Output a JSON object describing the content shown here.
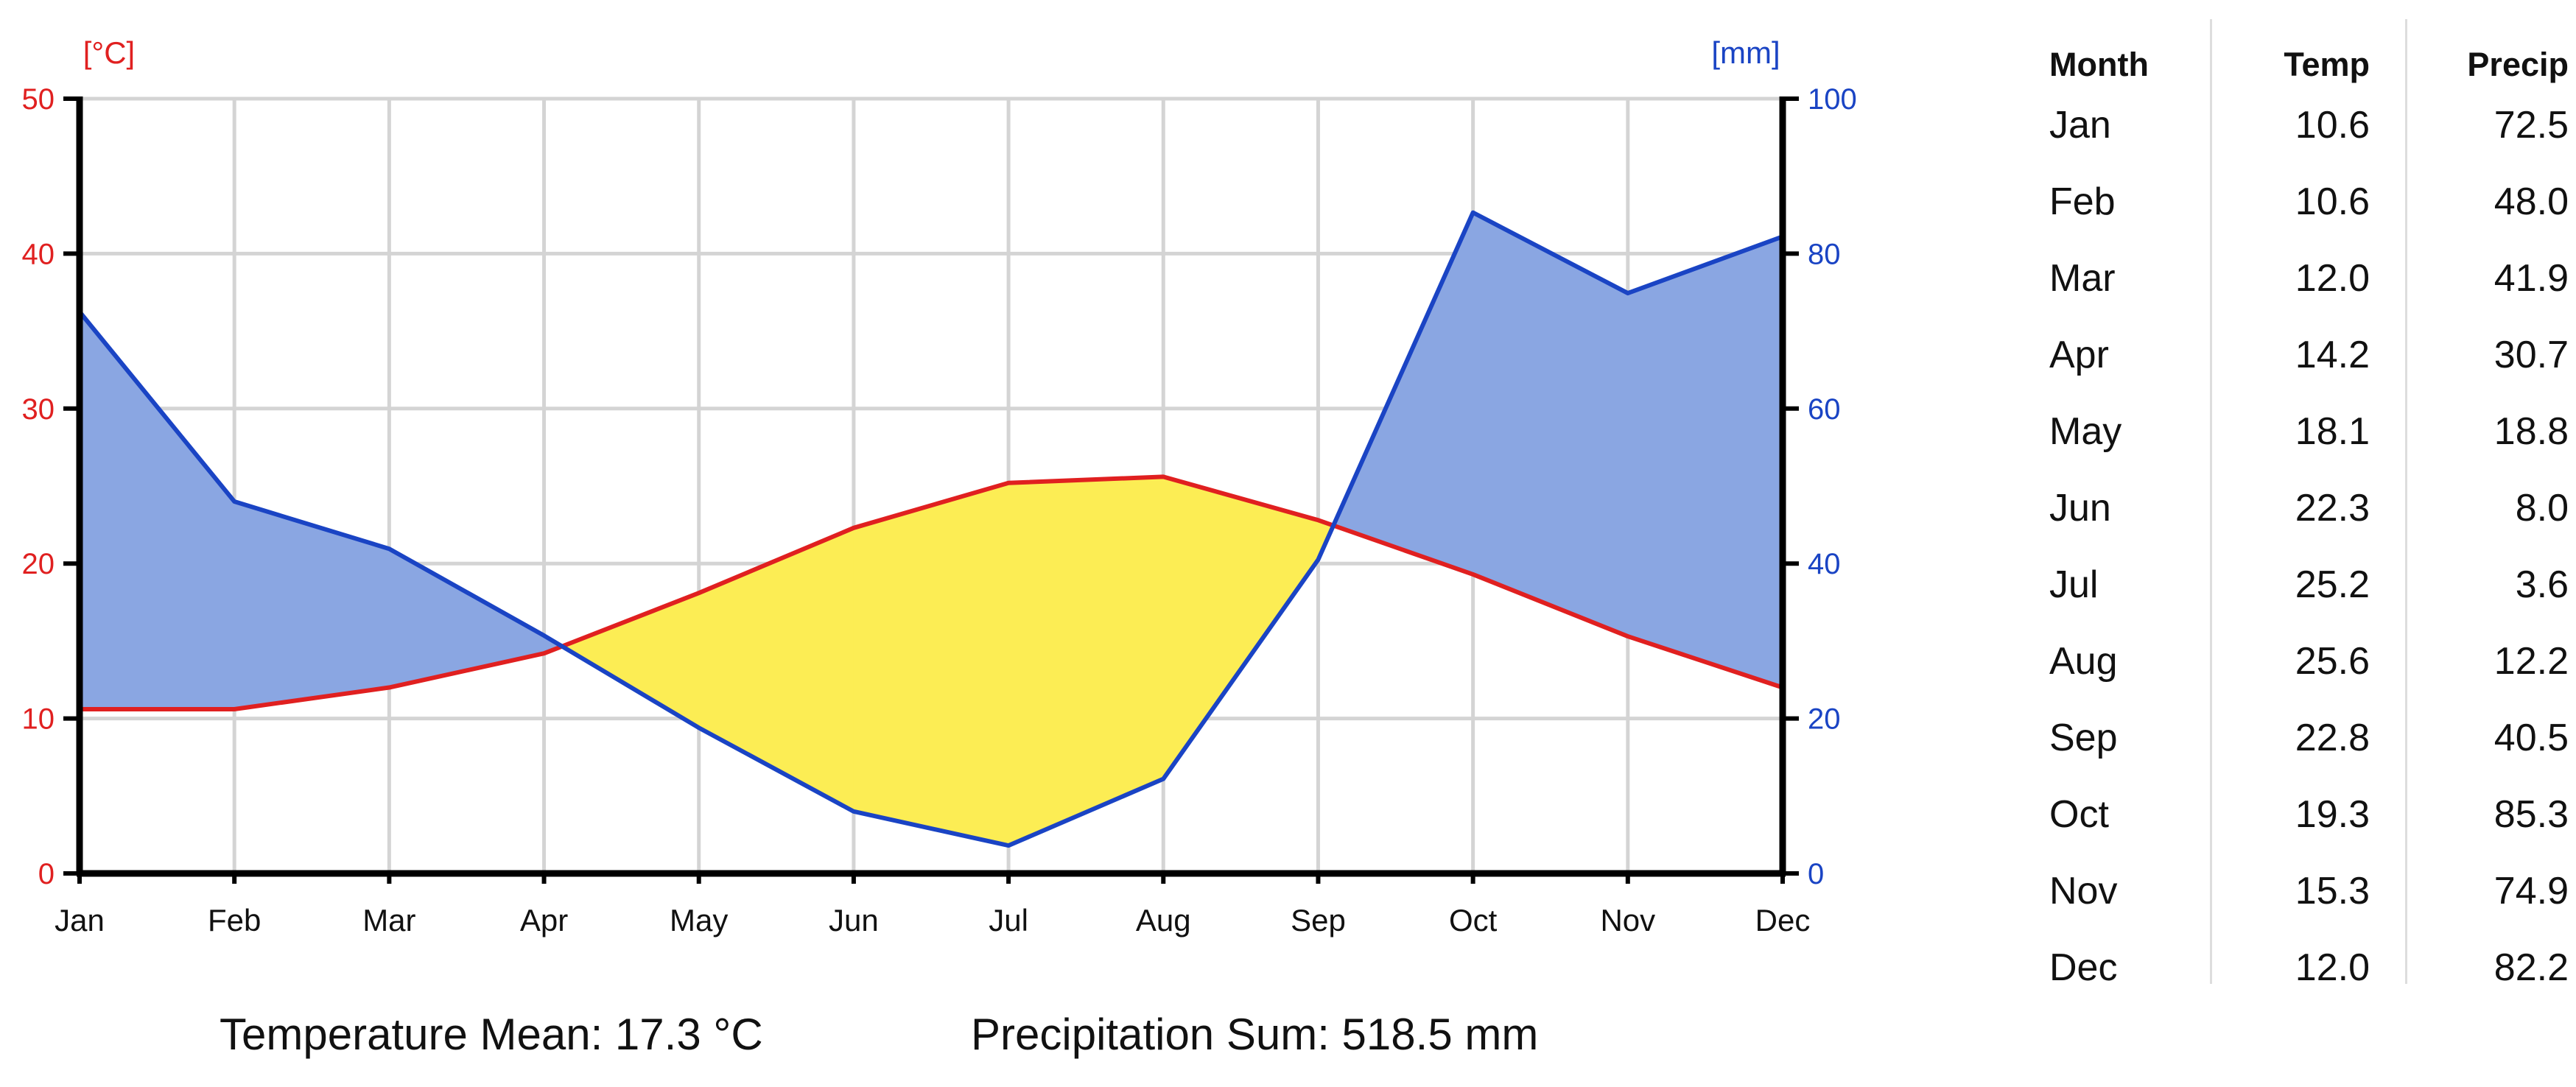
{
  "chart_data": {
    "type": "line",
    "title": "",
    "categories": [
      "Jan",
      "Feb",
      "Mar",
      "Apr",
      "May",
      "Jun",
      "Jul",
      "Aug",
      "Sep",
      "Oct",
      "Nov",
      "Dec"
    ],
    "series": [
      {
        "name": "Temperature",
        "axis": "left",
        "color": "#e02020",
        "values": [
          10.6,
          10.6,
          12.0,
          14.2,
          18.1,
          22.3,
          25.2,
          25.6,
          22.8,
          19.3,
          15.3,
          12.0
        ]
      },
      {
        "name": "Precipitation",
        "axis": "right",
        "color": "#1a44c4",
        "values": [
          72.5,
          48.0,
          41.9,
          30.7,
          18.8,
          8.0,
          3.6,
          12.2,
          40.5,
          85.3,
          74.9,
          82.2
        ]
      }
    ],
    "left_axis": {
      "label": "[°C]",
      "min": 0,
      "max": 50,
      "ticks": [
        0,
        10,
        20,
        30,
        40,
        50
      ],
      "tick_labels": [
        "0",
        "10",
        "20",
        "30",
        "40",
        "50"
      ],
      "color": "#e02020"
    },
    "right_axis": {
      "label": "[mm]",
      "min": 0,
      "max": 100,
      "ticks": [
        0,
        20,
        40,
        60,
        80,
        100
      ],
      "tick_labels": [
        "0",
        "20",
        "40",
        "60",
        "80",
        "100"
      ],
      "color": "#1a44c4"
    },
    "fill_colors": {
      "humid": "#8aa6e2",
      "arid": "#fced54"
    },
    "grid": true
  },
  "summary": {
    "temperature_mean": "Temperature Mean: 17.3 °C",
    "precipitation_sum": "Precipitation Sum: 518.5 mm"
  },
  "table": {
    "headers": {
      "month": "Month",
      "temp": "Temp",
      "precip": "Precip"
    },
    "rows": [
      {
        "month": "Jan",
        "temp": "10.6",
        "precip": "72.5"
      },
      {
        "month": "Feb",
        "temp": "10.6",
        "precip": "48.0"
      },
      {
        "month": "Mar",
        "temp": "12.0",
        "precip": "41.9"
      },
      {
        "month": "Apr",
        "temp": "14.2",
        "precip": "30.7"
      },
      {
        "month": "May",
        "temp": "18.1",
        "precip": "18.8"
      },
      {
        "month": "Jun",
        "temp": "22.3",
        "precip": "8.0"
      },
      {
        "month": "Jul",
        "temp": "25.2",
        "precip": "3.6"
      },
      {
        "month": "Aug",
        "temp": "25.6",
        "precip": "12.2"
      },
      {
        "month": "Sep",
        "temp": "22.8",
        "precip": "40.5"
      },
      {
        "month": "Oct",
        "temp": "19.3",
        "precip": "85.3"
      },
      {
        "month": "Nov",
        "temp": "15.3",
        "precip": "74.9"
      },
      {
        "month": "Dec",
        "temp": "12.0",
        "precip": "82.2"
      }
    ]
  }
}
